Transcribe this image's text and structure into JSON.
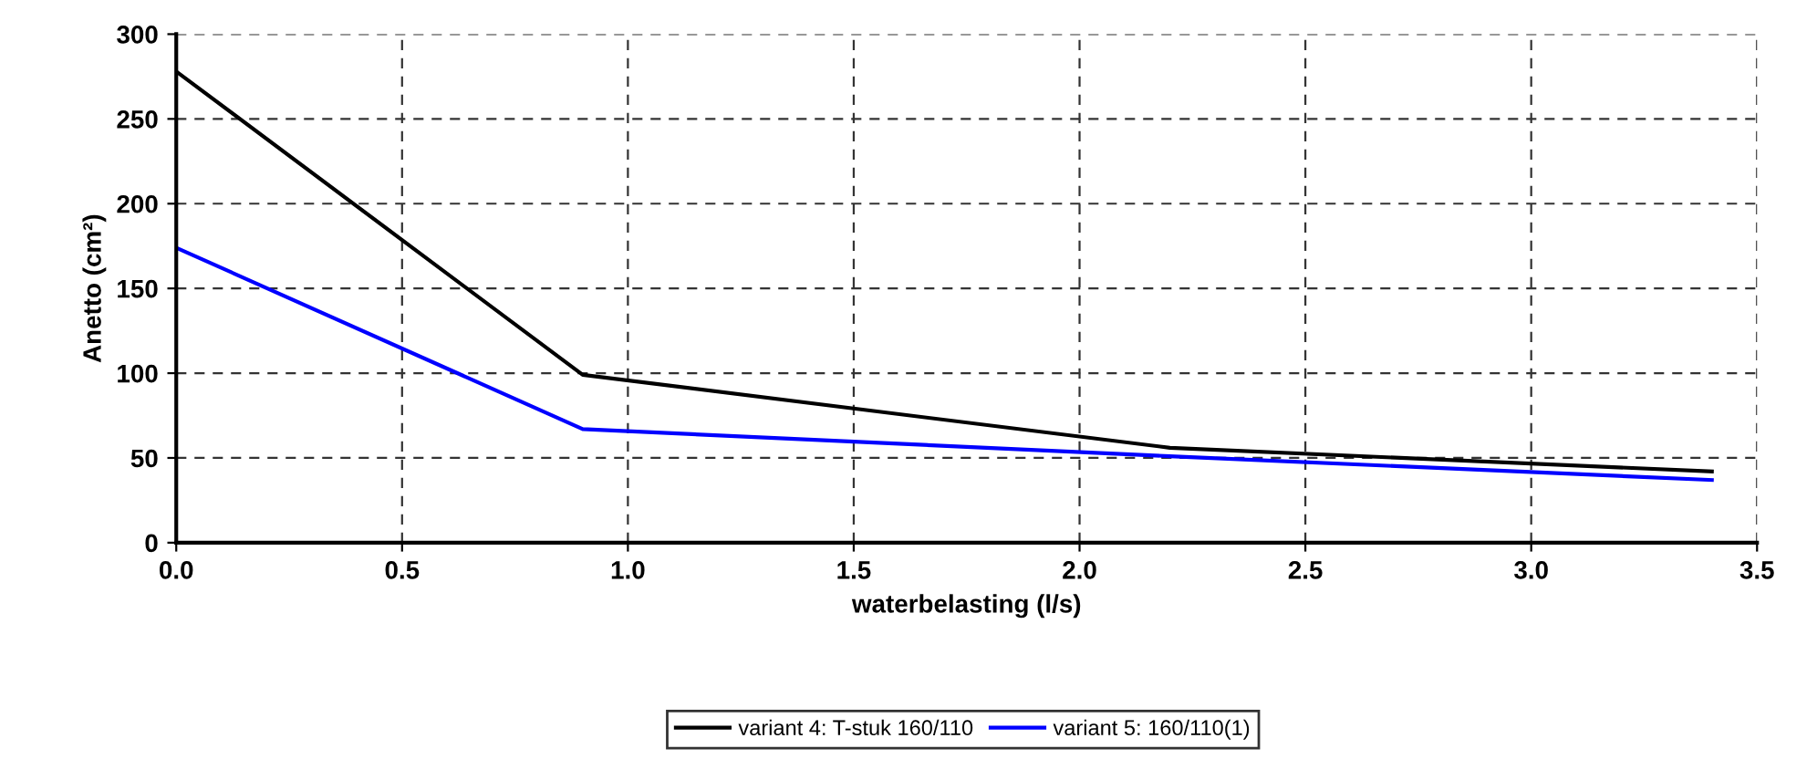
{
  "chart_data": {
    "type": "line",
    "xlabel": "waterbelasting (l/s)",
    "ylabel": "Anetto (cm²)",
    "xlim": [
      0,
      3.5
    ],
    "xticks": [
      {
        "value": 0,
        "label": "0.0"
      },
      0.5,
      {
        "value": 1,
        "label": "1.0"
      },
      1.5,
      {
        "value": 2,
        "label": "2.0"
      },
      2.5,
      {
        "value": 3,
        "label": "3.0"
      },
      3.5
    ],
    "ylim": [
      0,
      300
    ],
    "yticks": [
      0,
      50,
      100,
      150,
      200,
      250,
      300
    ],
    "grid": true,
    "legend": "bottom",
    "marker": "none",
    "line_style": "solid",
    "series": [
      {
        "name": "variant 4: T-stuk 160/110",
        "color": "#000000",
        "x": [
          0,
          0.9,
          2.2,
          3.4
        ],
        "values": [
          278,
          99,
          56,
          42
        ]
      },
      {
        "name": "variant 5: 160/110(1)",
        "color": "#0000ff",
        "x": [
          0,
          0.9,
          2.2,
          3.4
        ],
        "values": [
          174,
          67,
          51,
          37
        ]
      }
    ]
  }
}
